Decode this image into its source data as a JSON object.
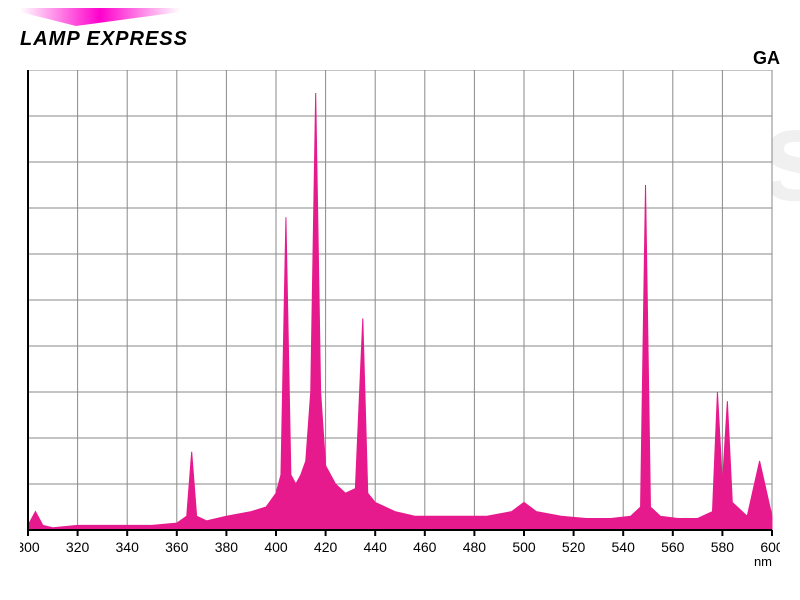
{
  "logo": {
    "text": "LAMP EXPRESS",
    "arrow_gradient": [
      "#ffffff",
      "#ff00cc",
      "#ffffff"
    ],
    "arrow_width": 160,
    "arrow_height": 18
  },
  "sub_label": "GA",
  "watermark_text": "LampExpress",
  "chart": {
    "type": "spectrum-area",
    "fill_color": "#e61a8d",
    "axis_color": "#000000",
    "axis_width": 2,
    "grid_color": "#8a8a8a",
    "grid_width": 1,
    "background_color": "#ffffff",
    "tick_font_size": 14,
    "tick_color": "#000000",
    "x_unit_label": "nm",
    "xlim": [
      300,
      600
    ],
    "x_ticks": [
      300,
      320,
      340,
      360,
      380,
      400,
      420,
      440,
      460,
      480,
      500,
      520,
      540,
      560,
      580,
      600
    ],
    "ylim": [
      0,
      100
    ],
    "y_grid_count": 10,
    "points": [
      [
        300,
        1
      ],
      [
        303,
        4
      ],
      [
        306,
        1
      ],
      [
        310,
        0.5
      ],
      [
        320,
        1
      ],
      [
        330,
        1
      ],
      [
        340,
        1
      ],
      [
        350,
        1
      ],
      [
        360,
        1.5
      ],
      [
        364,
        3
      ],
      [
        366,
        17
      ],
      [
        368,
        3
      ],
      [
        372,
        2
      ],
      [
        380,
        3
      ],
      [
        390,
        4
      ],
      [
        396,
        5
      ],
      [
        400,
        8
      ],
      [
        402,
        12
      ],
      [
        404,
        68
      ],
      [
        406,
        12
      ],
      [
        408,
        10
      ],
      [
        410,
        12
      ],
      [
        412,
        15
      ],
      [
        414,
        30
      ],
      [
        416,
        95
      ],
      [
        418,
        30
      ],
      [
        420,
        14
      ],
      [
        424,
        10
      ],
      [
        428,
        8
      ],
      [
        432,
        9
      ],
      [
        435,
        46
      ],
      [
        437,
        8
      ],
      [
        440,
        6
      ],
      [
        448,
        4
      ],
      [
        456,
        3
      ],
      [
        465,
        3
      ],
      [
        475,
        3
      ],
      [
        485,
        3
      ],
      [
        495,
        4
      ],
      [
        500,
        6
      ],
      [
        505,
        4
      ],
      [
        515,
        3
      ],
      [
        525,
        2.5
      ],
      [
        535,
        2.5
      ],
      [
        543,
        3
      ],
      [
        547,
        5
      ],
      [
        549,
        75
      ],
      [
        551,
        5
      ],
      [
        555,
        3
      ],
      [
        562,
        2.5
      ],
      [
        570,
        2.5
      ],
      [
        576,
        4
      ],
      [
        578,
        30
      ],
      [
        580,
        10
      ],
      [
        582,
        28
      ],
      [
        584,
        6
      ],
      [
        590,
        3
      ],
      [
        595,
        15
      ],
      [
        600,
        3
      ]
    ]
  }
}
